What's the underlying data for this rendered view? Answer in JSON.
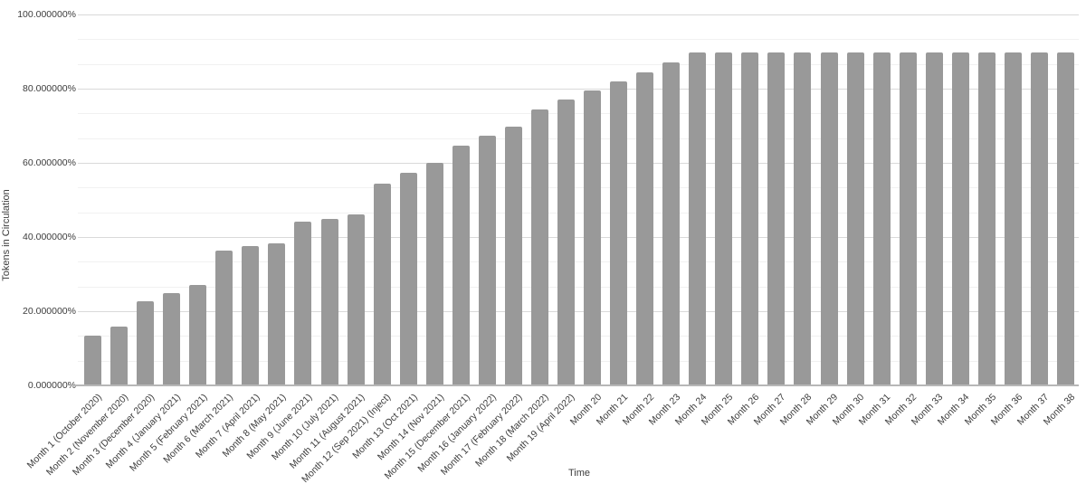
{
  "chart_data": {
    "type": "bar",
    "title": "",
    "xlabel": "Time",
    "ylabel": "Tokens in Circulation",
    "ylim": [
      0,
      100
    ],
    "legend": "none",
    "grid": "horizontal major gridlines every 20% with 2 minor gridlines between (every 6.667%)",
    "bar_color": "#999999",
    "background_color": "#ffffff",
    "y_tick_values": [
      0,
      20,
      40,
      60,
      80,
      100
    ],
    "y_tick_labels": [
      "0.000000%",
      "20.000000%",
      "40.000000%",
      "60.000000%",
      "80.000000%",
      "100.000000%"
    ],
    "categories": [
      "Month 1 (October 2020)",
      "Month 2 (November 2020)",
      "Month 3 (December 2020)",
      "Month 4 (January 2021)",
      "Month 5 (February 2021)",
      "Month 6 (March 2021)",
      "Month 7 (April 2021)",
      "Month 8 (May 2021)",
      "Month 9 (June 2021)",
      "Month 10 (July 2021)",
      "Month 11 (August 2021)",
      "Month 12 (Sep 2021) (Inject)",
      "Month 13 (Oct 2021)",
      "Month 14 (Nov 2021)",
      "Month 15 (December 2021)",
      "Month 16 (January 2022)",
      "Month 17 (February 2022)",
      "Month 18 (March 2022)",
      "Month 19 (April 2022)",
      "Month 20",
      "Month 21",
      "Month 22",
      "Month 23",
      "Month 24",
      "Month 25",
      "Month 26",
      "Month 27",
      "Month 28",
      "Month 29",
      "Month 30",
      "Month 31",
      "Month 32",
      "Month 33",
      "Month 34",
      "Month 35",
      "Month 36",
      "Month 37",
      "Month 38"
    ],
    "values": [
      13.5,
      15.75,
      22.75,
      25,
      27,
      36.25,
      37.5,
      38.25,
      44.25,
      45,
      46,
      54.5,
      57.25,
      60,
      64.75,
      67.25,
      69.75,
      74.5,
      77,
      79.5,
      82,
      84.5,
      87,
      89.75,
      89.75,
      89.75,
      89.75,
      89.75,
      89.75,
      89.75,
      89.75,
      89.75,
      89.75,
      89.75,
      89.75,
      89.75,
      89.75,
      89.75
    ]
  }
}
